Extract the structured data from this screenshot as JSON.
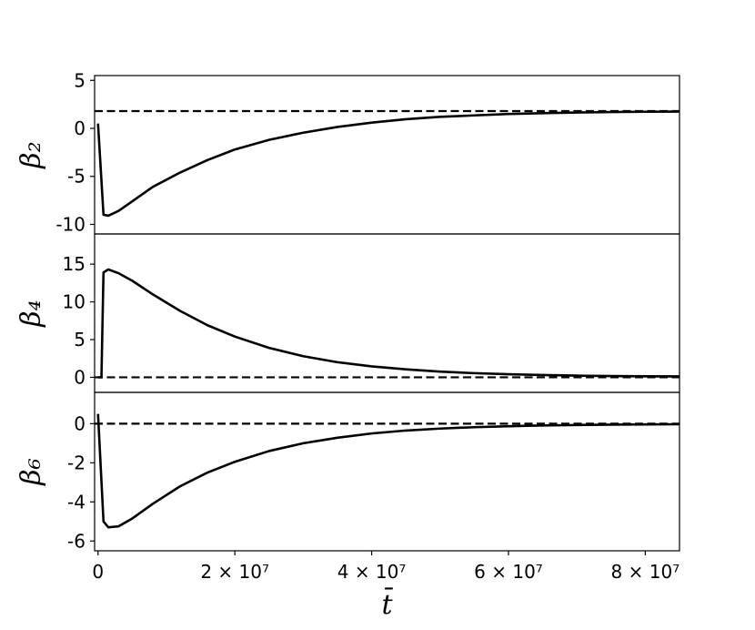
{
  "chart_data": {
    "type": "line",
    "shared_x": {
      "label": "t̄",
      "range": [
        -500000,
        85000000
      ],
      "ticks": [
        {
          "value": 0,
          "label": "0"
        },
        {
          "value": 20000000,
          "label": "2 × 10⁷"
        },
        {
          "value": 40000000,
          "label": "4 × 10⁷"
        },
        {
          "value": 60000000,
          "label": "6 × 10⁷"
        },
        {
          "value": 80000000,
          "label": "8 × 10⁷"
        }
      ]
    },
    "panels": [
      {
        "ylabel": "β₂",
        "ylim": [
          -11,
          5.5
        ],
        "yticks": [
          {
            "value": 5,
            "label": "5"
          },
          {
            "value": 0,
            "label": "0"
          },
          {
            "value": -5,
            "label": "-5"
          },
          {
            "value": -10,
            "label": "-10"
          }
        ],
        "reference_line": {
          "y": 1.8,
          "style": "dashed"
        },
        "series": [
          {
            "style": "solid",
            "x": [
              0,
              800000,
              1500000,
              3000000,
              5000000,
              8000000,
              12000000,
              16000000,
              20000000,
              25000000,
              30000000,
              35000000,
              40000000,
              45000000,
              50000000,
              55000000,
              60000000,
              65000000,
              70000000,
              75000000,
              80000000,
              85000000
            ],
            "y": [
              0.5,
              -9.0,
              -9.1,
              -8.6,
              -7.6,
              -6.1,
              -4.6,
              -3.3,
              -2.2,
              -1.2,
              -0.45,
              0.15,
              0.6,
              0.95,
              1.2,
              1.35,
              1.5,
              1.58,
              1.65,
              1.7,
              1.73,
              1.75
            ]
          }
        ]
      },
      {
        "ylabel": "β₄",
        "ylim": [
          -2,
          19
        ],
        "yticks": [
          {
            "value": 15,
            "label": "15"
          },
          {
            "value": 10,
            "label": "10"
          },
          {
            "value": 5,
            "label": "5"
          },
          {
            "value": 0,
            "label": "0"
          }
        ],
        "reference_line": {
          "y": 0,
          "style": "dashed"
        },
        "series": [
          {
            "style": "solid",
            "x": [
              0,
              500000,
              800000,
              1500000,
              3000000,
              5000000,
              8000000,
              12000000,
              16000000,
              20000000,
              25000000,
              30000000,
              35000000,
              40000000,
              45000000,
              50000000,
              55000000,
              60000000,
              65000000,
              70000000,
              75000000,
              80000000,
              85000000
            ],
            "y": [
              0,
              0,
              13.9,
              14.3,
              13.8,
              12.8,
              11.0,
              8.8,
              6.9,
              5.4,
              3.9,
              2.8,
              2.0,
              1.45,
              1.05,
              0.75,
              0.55,
              0.4,
              0.3,
              0.22,
              0.17,
              0.14,
              0.12
            ]
          }
        ]
      },
      {
        "ylabel": "β₆",
        "ylim": [
          -6.5,
          1.6
        ],
        "yticks": [
          {
            "value": 0,
            "label": "0"
          },
          {
            "value": -2,
            "label": "-2"
          },
          {
            "value": -4,
            "label": "-4"
          },
          {
            "value": -6,
            "label": "-6"
          }
        ],
        "reference_line": {
          "y": 0,
          "style": "dashed"
        },
        "series": [
          {
            "style": "solid",
            "x": [
              0,
              800000,
              1500000,
              3000000,
              5000000,
              8000000,
              12000000,
              16000000,
              20000000,
              25000000,
              30000000,
              35000000,
              40000000,
              45000000,
              50000000,
              55000000,
              60000000,
              65000000,
              70000000,
              75000000,
              80000000,
              85000000
            ],
            "y": [
              0.5,
              -5.0,
              -5.3,
              -5.25,
              -4.85,
              -4.1,
              -3.2,
              -2.5,
              -1.95,
              -1.4,
              -1.0,
              -0.72,
              -0.5,
              -0.35,
              -0.25,
              -0.18,
              -0.13,
              -0.09,
              -0.07,
              -0.05,
              -0.04,
              -0.03
            ]
          }
        ]
      }
    ]
  }
}
